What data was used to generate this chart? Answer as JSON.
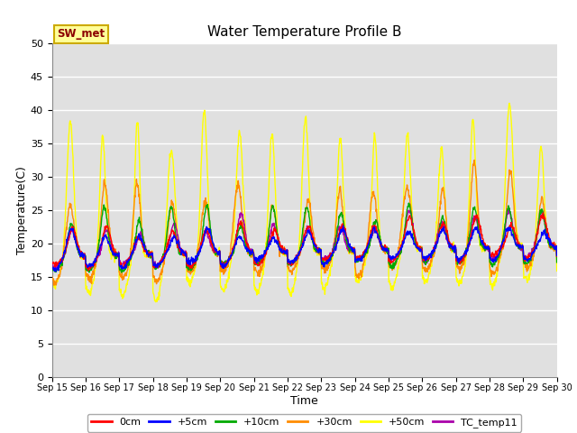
{
  "title": "Water Temperature Profile B",
  "xlabel": "Time",
  "ylabel": "Temperature(C)",
  "ylim": [
    0,
    50
  ],
  "yticks": [
    0,
    5,
    10,
    15,
    20,
    25,
    30,
    35,
    40,
    45,
    50
  ],
  "x_tick_labels": [
    "Sep 15",
    "Sep 16",
    "Sep 17",
    "Sep 18",
    "Sep 19",
    "Sep 20",
    "Sep 21",
    "Sep 22",
    "Sep 23",
    "Sep 24",
    "Sep 25",
    "Sep 26",
    "Sep 27",
    "Sep 28",
    "Sep 29",
    "Sep 30"
  ],
  "annotation_text": "SW_met",
  "annotation_box_color": "#FFFF99",
  "annotation_text_color": "#8B0000",
  "annotation_border_color": "#CCAA00",
  "plot_bg_color": "#E0E0E0",
  "grid_color": "#FFFFFF",
  "series_colors": {
    "0cm": "#FF0000",
    "+5cm": "#0000FF",
    "+10cm": "#00AA00",
    "+30cm": "#FF8C00",
    "+50cm": "#FFFF00",
    "TC_temp11": "#AA00AA"
  },
  "legend_entries": [
    "0cm",
    "+5cm",
    "+10cm",
    "+30cm",
    "+50cm",
    "TC_temp11"
  ]
}
